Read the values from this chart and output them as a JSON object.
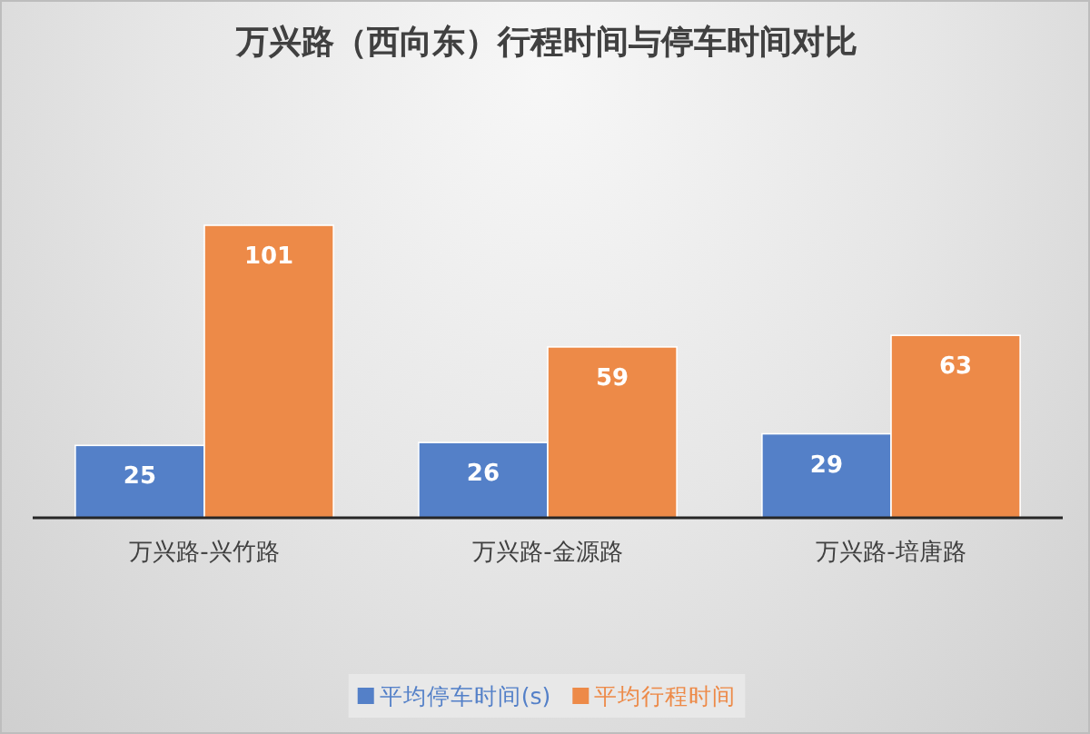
{
  "chart_data": {
    "type": "bar",
    "title": "万兴路（西向东）行程时间与停车时间对比",
    "categories": [
      "万兴路-兴竹路",
      "万兴路-金源路",
      "万兴路-培唐路"
    ],
    "series": [
      {
        "name": "平均停车时间(s)",
        "color": "#5480c8",
        "values": [
          25,
          26,
          29
        ]
      },
      {
        "name": "平均行程时间",
        "color": "#ed8a48",
        "values": [
          101,
          59,
          63
        ]
      }
    ],
    "data_labels": true,
    "legend": "bottom"
  }
}
